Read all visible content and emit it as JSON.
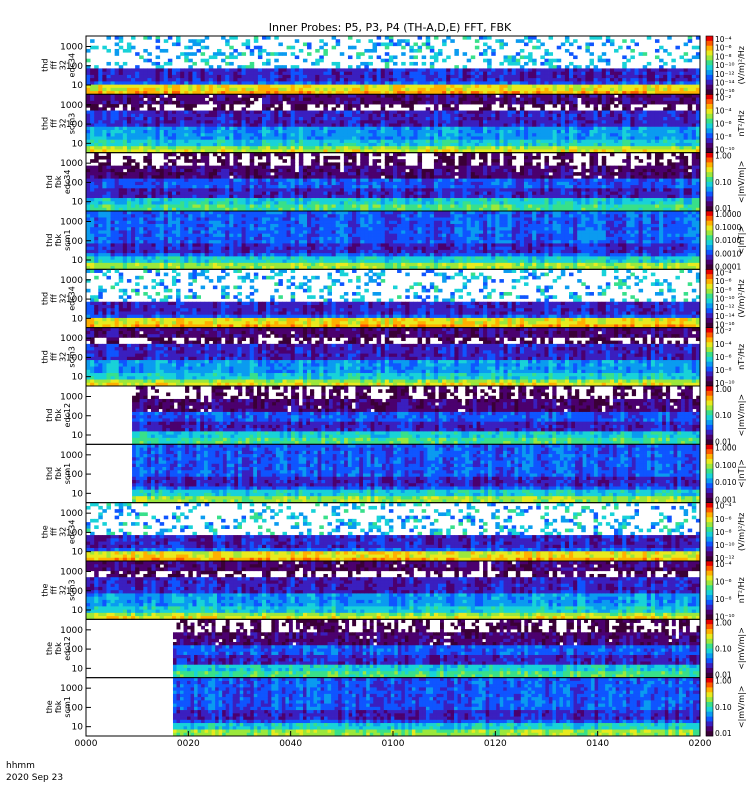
{
  "chart_data": {
    "type": "heatmap",
    "title": "Inner Probes: P5, P3, P4 (TH-A,D,E) FFT, FBK",
    "x_time_range": [
      "0000",
      "0200"
    ],
    "x_ticks": [
      "0000",
      "0020",
      "0040",
      "0100",
      "0120",
      "0140",
      "0200"
    ],
    "x_footer": [
      "hhmm",
      "2020 Sep 23"
    ],
    "panels": [
      {
        "label": [
          "thd",
          "fff",
          "32",
          "edc34"
        ],
        "y_ticks": [
          "1000",
          "100",
          "10"
        ],
        "colorbar_unit": "(V/m)²/Hz",
        "colorbar_ticks": [
          "10⁻⁴",
          "10⁻⁶",
          "10⁻⁸",
          "10⁻¹⁰",
          "10⁻¹²",
          "10⁻¹⁴",
          "10⁻¹⁶"
        ],
        "cbar_log": [
          -4,
          -16
        ],
        "data_start": "0000"
      },
      {
        "label": [
          "thd",
          "fff",
          "32",
          "scm3"
        ],
        "y_ticks": [
          "1000",
          "100",
          "10"
        ],
        "colorbar_unit": "nT²/Hz",
        "colorbar_ticks": [
          "10⁻²",
          "10⁻⁴",
          "10⁻⁶",
          "10⁻⁸",
          "10⁻¹⁰"
        ],
        "cbar_log": [
          -2,
          -10
        ],
        "data_start": "0000"
      },
      {
        "label": [
          "thd",
          "fbk",
          "edc34"
        ],
        "y_ticks": [
          "1000",
          "100",
          "10"
        ],
        "colorbar_unit": "<|mV/m|>",
        "colorbar_ticks": [
          "1.00",
          "0.10",
          "0.01"
        ],
        "cbar_log": [
          0,
          -2
        ],
        "data_start": "0000"
      },
      {
        "label": [
          "thd",
          "fbk",
          "scm1"
        ],
        "y_ticks": [
          "1000",
          "100",
          "10"
        ],
        "colorbar_unit": "<|nT|>",
        "colorbar_ticks": [
          "1.0000",
          "0.1000",
          "0.0100",
          "0.0010",
          "0.0001"
        ],
        "cbar_log": [
          0,
          -4
        ],
        "data_start": "0000"
      },
      {
        "label": [
          "thd",
          "fff",
          "32",
          "edc34"
        ],
        "y_ticks": [
          "1000",
          "100",
          "10"
        ],
        "colorbar_unit": "(V/m)²/Hz",
        "colorbar_ticks": [
          "10⁻⁴",
          "10⁻⁶",
          "10⁻⁸",
          "10⁻¹⁰",
          "10⁻¹²",
          "10⁻¹⁴",
          "10⁻¹⁶"
        ],
        "cbar_log": [
          -4,
          -16
        ],
        "data_start": "0000"
      },
      {
        "label": [
          "thd",
          "fff",
          "32",
          "scm3"
        ],
        "y_ticks": [
          "1000",
          "100",
          "10"
        ],
        "colorbar_unit": "nT²/Hz",
        "colorbar_ticks": [
          "10⁻²",
          "10⁻⁴",
          "10⁻⁶",
          "10⁻⁸",
          "10⁻¹⁰"
        ],
        "cbar_log": [
          -2,
          -10
        ],
        "data_start": "0000"
      },
      {
        "label": [
          "thd",
          "fbk",
          "edc12"
        ],
        "y_ticks": [
          "1000",
          "100",
          "10"
        ],
        "colorbar_unit": "<|mV/m|>",
        "colorbar_ticks": [
          "1.00",
          "0.10",
          "0.01"
        ],
        "cbar_log": [
          0,
          -2
        ],
        "data_start": "0009"
      },
      {
        "label": [
          "thd",
          "fbk",
          "scm1"
        ],
        "y_ticks": [
          "1000",
          "100",
          "10"
        ],
        "colorbar_unit": "<|nT|>",
        "colorbar_ticks": [
          "1.000",
          "0.100",
          "0.010",
          "0.001"
        ],
        "cbar_log": [
          0,
          -3
        ],
        "data_start": "0009"
      },
      {
        "label": [
          "the",
          "fff",
          "32",
          "edc34"
        ],
        "y_ticks": [
          "1000",
          "100",
          "10"
        ],
        "colorbar_unit": "(V/m)²/Hz",
        "colorbar_ticks": [
          "10⁻⁴",
          "10⁻⁶",
          "10⁻⁸",
          "10⁻¹⁰",
          "10⁻¹²"
        ],
        "cbar_log": [
          -4,
          -12
        ],
        "data_start": "0000"
      },
      {
        "label": [
          "the",
          "fff",
          "32",
          "scm3"
        ],
        "y_ticks": [
          "1000",
          "100",
          "10"
        ],
        "colorbar_unit": "nT²/Hz",
        "colorbar_ticks": [
          "10⁻⁴",
          "10⁻⁶",
          "10⁻⁸",
          "10⁻¹⁰"
        ],
        "cbar_log": [
          -4,
          -10
        ],
        "data_start": "0000"
      },
      {
        "label": [
          "the",
          "fbk",
          "edc12"
        ],
        "y_ticks": [
          "1000",
          "100",
          "10"
        ],
        "colorbar_unit": "<|mV/m|>",
        "colorbar_ticks": [
          "1.00",
          "0.10",
          "0.01"
        ],
        "cbar_log": [
          0,
          -2
        ],
        "data_start": "0017"
      },
      {
        "label": [
          "the",
          "fbk",
          "scm1"
        ],
        "y_ticks": [
          "1000",
          "100",
          "10"
        ],
        "colorbar_unit": "<|mV/m|>",
        "colorbar_ticks": [
          "1.00",
          "0.10",
          "0.01"
        ],
        "cbar_log": [
          0,
          -2
        ],
        "data_start": "0017"
      }
    ],
    "colormap": [
      "#3a0036",
      "#4b006e",
      "#3a1fbf",
      "#0f55ff",
      "#0a9bf0",
      "#18d2d8",
      "#38e08a",
      "#9be83c",
      "#e8ea1e",
      "#ffb000",
      "#ff5a00",
      "#e80000"
    ],
    "y_scale": "log",
    "grid": false
  }
}
